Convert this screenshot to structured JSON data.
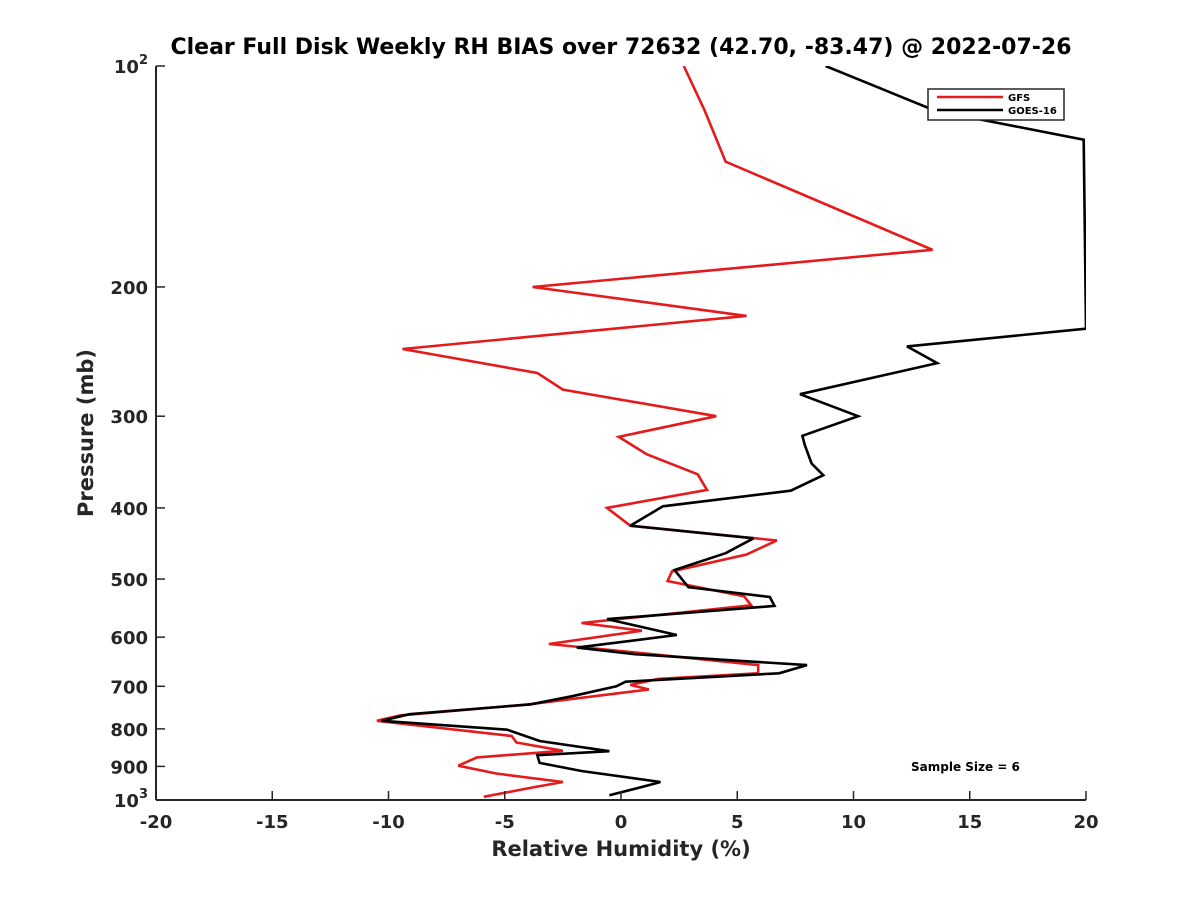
{
  "chart_data": {
    "type": "line",
    "title": "Clear Full Disk Weekly RH BIAS over 72632 (42.70, -83.47) @ 2022-07-26",
    "xlabel": "Relative Humidity (%)",
    "ylabel": "Pressure (mb)",
    "xlim": [
      -20,
      20
    ],
    "ylim": [
      100,
      1000
    ],
    "y_scale": "log",
    "y_reversed": true,
    "x_ticks": [
      "-20",
      "-15",
      "-10",
      "-5",
      "0",
      "5",
      "10",
      "15",
      "20"
    ],
    "y_ticks": [
      {
        "base": "10",
        "exp": "2"
      },
      {
        "label": "200"
      },
      {
        "label": "300"
      },
      {
        "label": "400"
      },
      {
        "label": "500"
      },
      {
        "label": "600"
      },
      {
        "label": "700"
      },
      {
        "label": "800"
      },
      {
        "label": "900"
      },
      {
        "base": "10",
        "exp": "3"
      }
    ],
    "grid": false,
    "legend_position": "top-right",
    "annotation": "Sample Size = 6",
    "series": [
      {
        "name": "GFS",
        "color": "#e41a1c",
        "points": [
          [
            2.7,
            100
          ],
          [
            3.6,
            115
          ],
          [
            4.5,
            135
          ],
          [
            13.4,
            178
          ],
          [
            -3.8,
            200
          ],
          [
            5.4,
            219
          ],
          [
            -9.4,
            243
          ],
          [
            -3.6,
            262
          ],
          [
            -2.5,
            276
          ],
          [
            4.1,
            300
          ],
          [
            -0.1,
            320
          ],
          [
            1.1,
            338
          ],
          [
            3.3,
            360
          ],
          [
            3.7,
            378
          ],
          [
            -0.6,
            400
          ],
          [
            0.4,
            423
          ],
          [
            6.7,
            443
          ],
          [
            5.4,
            463
          ],
          [
            2.2,
            488
          ],
          [
            2.0,
            503
          ],
          [
            5.3,
            528
          ],
          [
            5.6,
            543
          ],
          [
            -1.7,
            574
          ],
          [
            0.9,
            588
          ],
          [
            -3.1,
            613
          ],
          [
            0.7,
            630
          ],
          [
            5.9,
            655
          ],
          [
            5.9,
            672
          ],
          [
            1.6,
            684
          ],
          [
            0.4,
            697
          ],
          [
            1.2,
            707
          ],
          [
            -4.0,
            741
          ],
          [
            -9.5,
            767
          ],
          [
            -10.5,
            780
          ],
          [
            -4.7,
            818
          ],
          [
            -4.5,
            835
          ],
          [
            -2.5,
            857
          ],
          [
            -6.2,
            875
          ],
          [
            -7.0,
            898
          ],
          [
            -5.4,
            920
          ],
          [
            -2.5,
            945
          ],
          [
            -3.7,
            960
          ],
          [
            -5.9,
            990
          ]
        ]
      },
      {
        "name": "GOES-16",
        "color": "#000000",
        "points": [
          [
            8.8,
            100
          ],
          [
            13.5,
            115
          ],
          [
            19.9,
            126
          ],
          [
            20.0,
            228
          ],
          [
            12.3,
            241
          ],
          [
            13.6,
            254
          ],
          [
            7.7,
            280
          ],
          [
            10.2,
            300
          ],
          [
            7.8,
            319
          ],
          [
            7.9,
            328
          ],
          [
            8.2,
            348
          ],
          [
            8.7,
            361
          ],
          [
            7.3,
            379
          ],
          [
            1.8,
            398
          ],
          [
            0.4,
            423
          ],
          [
            5.7,
            440
          ],
          [
            4.5,
            461
          ],
          [
            2.3,
            486
          ],
          [
            2.9,
            513
          ],
          [
            6.4,
            529
          ],
          [
            6.6,
            544
          ],
          [
            -0.6,
            567
          ],
          [
            2.4,
            596
          ],
          [
            -1.9,
            620
          ],
          [
            0.6,
            633
          ],
          [
            8.0,
            655
          ],
          [
            6.8,
            672
          ],
          [
            0.2,
            690
          ],
          [
            -0.2,
            700
          ],
          [
            -2.1,
            722
          ],
          [
            -3.9,
            741
          ],
          [
            -9.1,
            764
          ],
          [
            -10.3,
            780
          ],
          [
            -4.9,
            802
          ],
          [
            -3.5,
            831
          ],
          [
            -0.5,
            858
          ],
          [
            -3.6,
            869
          ],
          [
            -3.5,
            890
          ],
          [
            -1.7,
            913
          ],
          [
            1.7,
            945
          ],
          [
            0.9,
            960
          ],
          [
            -0.5,
            985
          ]
        ]
      }
    ]
  }
}
